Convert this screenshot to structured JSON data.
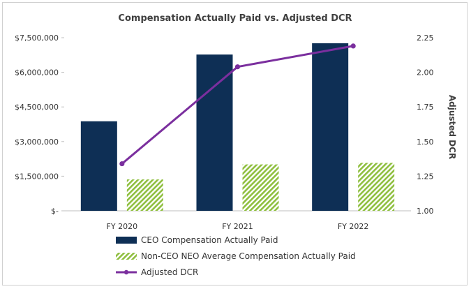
{
  "chart_data": {
    "type": "bar",
    "title": "Compensation Actually Paid vs. Adjusted DCR",
    "categories": [
      "FY 2020",
      "FY 2021",
      "FY 2022"
    ],
    "series": [
      {
        "name": "CEO Compensation Actually Paid",
        "kind": "bar",
        "axis": "left",
        "color": "#0e2f55",
        "values": [
          3880000,
          6770000,
          7260000
        ]
      },
      {
        "name": "Non-CEO NEO Average Compensation Actually Paid",
        "kind": "bar",
        "axis": "left",
        "pattern": "diagonal-stripes",
        "color": "#8fbf3f",
        "values": [
          1360000,
          2010000,
          2080000
        ]
      },
      {
        "name": "Adjusted DCR",
        "kind": "line",
        "axis": "right",
        "color": "#7b2f9e",
        "values": [
          1.34,
          2.04,
          2.19
        ]
      }
    ],
    "y_left": {
      "ylim": [
        0,
        7500000
      ],
      "ticks": [
        0,
        1500000,
        3000000,
        4500000,
        6000000,
        7500000
      ],
      "tick_labels": [
        "$-",
        "$1,500,000",
        "$3,000,000",
        "$4,500,000",
        "$6,000,000",
        "$7,500,000"
      ]
    },
    "y_right": {
      "label": "Adjusted DCR",
      "ylim": [
        1.0,
        2.25
      ],
      "ticks": [
        1.0,
        1.25,
        1.5,
        1.75,
        2.0,
        2.25
      ],
      "tick_labels": [
        "1.00",
        "1.25",
        "1.50",
        "1.75",
        "2.00",
        "2.25"
      ]
    },
    "legend_position": "bottom-center",
    "grid": false
  }
}
